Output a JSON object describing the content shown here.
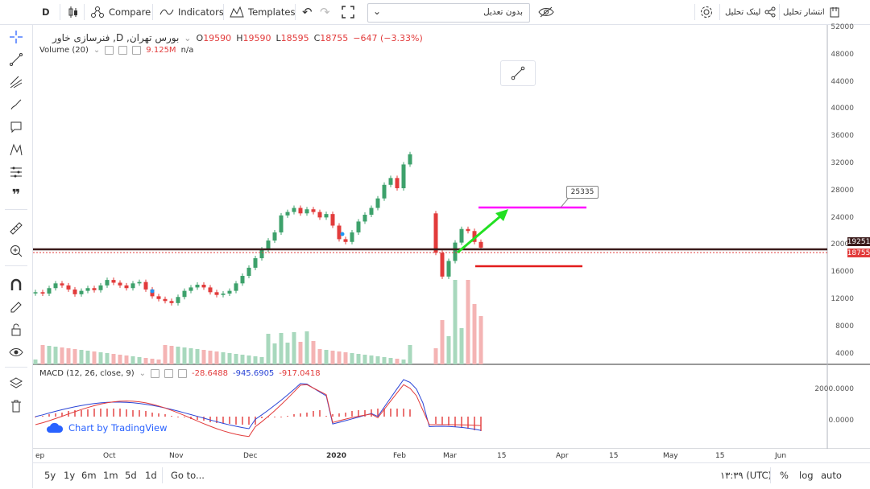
{
  "toolbar": {
    "interval": "D",
    "compare": "Compare",
    "indicators": "Indicators",
    "templates": "Templates",
    "adjust_select": "بدون تعدیل",
    "link_analysis": "لینک تحلیل",
    "publish_analysis": "انتشار تحلیل"
  },
  "legend": {
    "symbol": "فنرسازی خاور ,D ,بورس تهران",
    "open_label": "O",
    "open": "19590",
    "high_label": "H",
    "high": "19590",
    "low_label": "L",
    "low": "18595",
    "close_label": "C",
    "close": "18755",
    "change": "−647 (−3.33%)",
    "volume_label": "Volume (20)",
    "volume_value": "9.125M",
    "volume_na": "n/a",
    "macd_label": "MACD (12, 26, close, 9)",
    "macd_hist": "-28.6488",
    "macd_line": "-945.6905",
    "macd_signal": "-917.0418"
  },
  "price_axis": [
    "52000",
    "48000",
    "44000",
    "40000",
    "36000",
    "32000",
    "28000",
    "24000",
    "20000",
    "16000",
    "12000",
    "8000",
    "4000"
  ],
  "price_badges": {
    "level": "19251",
    "close": "18755"
  },
  "macd_axis": [
    "2000.0000",
    "0.0000"
  ],
  "time_axis": [
    "ep",
    "Oct",
    "Nov",
    "Dec",
    "2020",
    "Feb",
    "Mar",
    "15",
    "Apr",
    "15",
    "May",
    "15",
    "Jun"
  ],
  "callout": "25335",
  "branding": "Chart by TradingView",
  "bottom": {
    "ranges": [
      "5y",
      "1y",
      "6m",
      "1m",
      "5d",
      "1d"
    ],
    "goto": "Go to...",
    "clock": "۱۳:۳۹ (UTC)",
    "percent": "%",
    "log": "log",
    "auto": "auto"
  },
  "colors": {
    "up": "#3da16b",
    "down": "#e23b3b",
    "accent": "#2962ff",
    "magenta": "#ff00ff",
    "arrow": "#22e022"
  },
  "chart_data": {
    "type": "candlestick",
    "visible_close_range": [
      10500,
      32500
    ],
    "last_close": 18755,
    "horizontal_level": 19251,
    "target_level": 25335
  }
}
